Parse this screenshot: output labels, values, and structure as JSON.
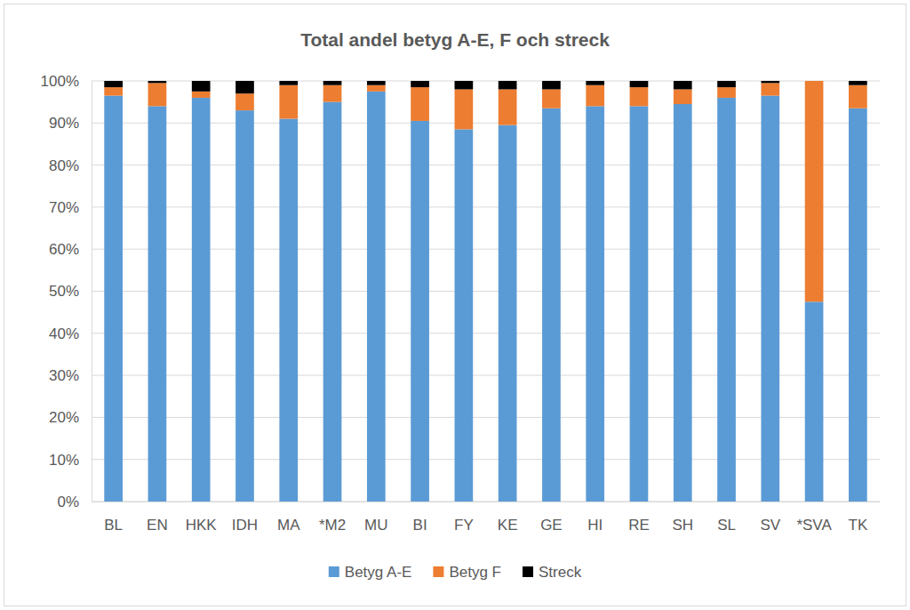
{
  "chart_data": {
    "type": "bar",
    "stacked": true,
    "title": "Total andel betyg A-E, F och streck",
    "categories": [
      "BL",
      "EN",
      "HKK",
      "IDH",
      "MA",
      "*M2",
      "MU",
      "BI",
      "FY",
      "KE",
      "GE",
      "HI",
      "RE",
      "SH",
      "SL",
      "SV",
      "*SVA",
      "TK"
    ],
    "series": [
      {
        "name": "Betyg A-E",
        "color": "#5b9bd5",
        "values": [
          96.5,
          94,
          96,
          93,
          91,
          95,
          97.5,
          90.5,
          88.5,
          89.5,
          93.5,
          94,
          94,
          94.5,
          96,
          96.5,
          47.5,
          93.5
        ]
      },
      {
        "name": "Betyg F",
        "color": "#ed7d31",
        "values": [
          2,
          5.5,
          1.5,
          4,
          8,
          4,
          1.5,
          8,
          9.5,
          8.5,
          4.5,
          5,
          4.5,
          3.5,
          2.5,
          3,
          52.5,
          5.5
        ]
      },
      {
        "name": "Streck",
        "color": "#000000",
        "values": [
          1.5,
          0.5,
          2.5,
          3,
          1,
          1,
          1,
          1.5,
          2,
          2,
          2,
          1,
          1.5,
          2,
          1.5,
          0.5,
          0,
          1
        ]
      }
    ],
    "ylim": [
      0,
      100
    ],
    "yticks": [
      {
        "value": 0,
        "label": "0%"
      },
      {
        "value": 10,
        "label": "10%"
      },
      {
        "value": 20,
        "label": "20%"
      },
      {
        "value": 30,
        "label": "30%"
      },
      {
        "value": 40,
        "label": "40%"
      },
      {
        "value": 50,
        "label": "50%"
      },
      {
        "value": 60,
        "label": "60%"
      },
      {
        "value": 70,
        "label": "70%"
      },
      {
        "value": 80,
        "label": "80%"
      },
      {
        "value": 90,
        "label": "90%"
      },
      {
        "value": 100,
        "label": "100%"
      }
    ],
    "grid": true,
    "legend": "bottom"
  }
}
